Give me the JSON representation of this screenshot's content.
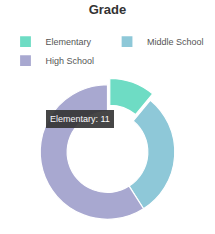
{
  "chart_data": {
    "type": "pie",
    "title": "Grade",
    "categories": [
      "Elementary",
      "Middle School",
      "High School"
    ],
    "values": [
      11,
      30,
      59
    ],
    "colors": [
      "#6edcc4",
      "#8ec8d8",
      "#a8a8d0"
    ],
    "legend": "top",
    "annotations": [
      "Elementary: 11"
    ]
  }
}
